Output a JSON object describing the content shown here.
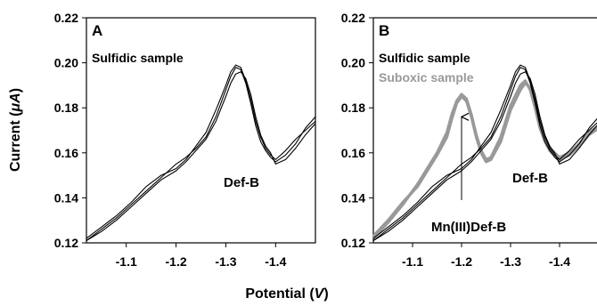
{
  "xlabel": "Potential (V)",
  "ylabel": "Current (μA)",
  "chart_data": [
    {
      "type": "line",
      "panel": "A",
      "xlabel": "Potential (V)",
      "ylabel": "Current (μA)",
      "xlim": [
        -1.02,
        -1.48
      ],
      "ylim": [
        0.12,
        0.22
      ],
      "x_ticks": [
        -1.1,
        -1.2,
        -1.3,
        -1.4
      ],
      "y_ticks": [
        0.12,
        0.14,
        0.16,
        0.18,
        0.2,
        0.22
      ],
      "grid": false,
      "annotations": [
        {
          "text": "Sulfidic sample"
        },
        {
          "text": "Def-B",
          "x": -1.36,
          "y": 0.154
        }
      ],
      "series": [
        {
          "color": "#000000",
          "x": [
            -1.02,
            -1.05,
            -1.08,
            -1.11,
            -1.14,
            -1.17,
            -1.2,
            -1.22,
            -1.24,
            -1.26,
            -1.28,
            -1.3,
            -1.31,
            -1.32,
            -1.33,
            -1.34,
            -1.35,
            -1.36,
            -1.37,
            -1.38,
            -1.39,
            -1.4,
            -1.42,
            -1.44,
            -1.46,
            -1.48
          ],
          "y": [
            0.121,
            0.126,
            0.131,
            0.137,
            0.143,
            0.149,
            0.155,
            0.158,
            0.162,
            0.167,
            0.176,
            0.188,
            0.194,
            0.198,
            0.197,
            0.191,
            0.182,
            0.172,
            0.165,
            0.161,
            0.158,
            0.156,
            0.159,
            0.164,
            0.171,
            0.176
          ]
        },
        {
          "color": "#000000",
          "x": [
            -1.02,
            -1.05,
            -1.08,
            -1.11,
            -1.14,
            -1.17,
            -1.2,
            -1.22,
            -1.24,
            -1.26,
            -1.28,
            -1.3,
            -1.31,
            -1.32,
            -1.33,
            -1.34,
            -1.35,
            -1.36,
            -1.37,
            -1.38,
            -1.39,
            -1.4,
            -1.42,
            -1.44,
            -1.46,
            -1.48
          ],
          "y": [
            0.122,
            0.127,
            0.132,
            0.138,
            0.145,
            0.15,
            0.153,
            0.157,
            0.163,
            0.169,
            0.179,
            0.19,
            0.196,
            0.199,
            0.198,
            0.192,
            0.184,
            0.174,
            0.167,
            0.162,
            0.159,
            0.157,
            0.161,
            0.166,
            0.17,
            0.174
          ]
        },
        {
          "color": "#000000",
          "x": [
            -1.02,
            -1.05,
            -1.08,
            -1.11,
            -1.14,
            -1.17,
            -1.2,
            -1.22,
            -1.24,
            -1.26,
            -1.28,
            -1.3,
            -1.31,
            -1.32,
            -1.33,
            -1.34,
            -1.35,
            -1.36,
            -1.37,
            -1.38,
            -1.39,
            -1.4,
            -1.42,
            -1.44,
            -1.46,
            -1.48
          ],
          "y": [
            0.121,
            0.125,
            0.13,
            0.136,
            0.142,
            0.148,
            0.152,
            0.156,
            0.161,
            0.166,
            0.174,
            0.185,
            0.191,
            0.195,
            0.196,
            0.193,
            0.186,
            0.176,
            0.168,
            0.163,
            0.16,
            0.155,
            0.157,
            0.162,
            0.168,
            0.173
          ]
        }
      ]
    },
    {
      "type": "line",
      "panel": "B",
      "xlabel": "Potential (V)",
      "ylabel": "Current (μA)",
      "xlim": [
        -1.02,
        -1.48
      ],
      "ylim": [
        0.12,
        0.22
      ],
      "x_ticks": [
        -1.1,
        -1.2,
        -1.3,
        -1.4
      ],
      "y_ticks": [
        0.12,
        0.14,
        0.16,
        0.18,
        0.2,
        0.22
      ],
      "grid": false,
      "annotations": [
        {
          "text": "Sulfidic sample"
        },
        {
          "text": "Suboxic sample"
        },
        {
          "text": "Def-B",
          "x": -1.36,
          "y": 0.154
        },
        {
          "text": "Mn(III)Def-B",
          "x": -1.2,
          "y": 0.136
        }
      ],
      "series": [
        {
          "color": "#000000",
          "x": [
            -1.02,
            -1.05,
            -1.08,
            -1.11,
            -1.14,
            -1.17,
            -1.2,
            -1.22,
            -1.24,
            -1.26,
            -1.28,
            -1.3,
            -1.31,
            -1.32,
            -1.33,
            -1.34,
            -1.35,
            -1.36,
            -1.37,
            -1.38,
            -1.39,
            -1.4,
            -1.42,
            -1.44,
            -1.46,
            -1.48
          ],
          "y": [
            0.121,
            0.126,
            0.131,
            0.137,
            0.143,
            0.149,
            0.155,
            0.158,
            0.162,
            0.167,
            0.176,
            0.188,
            0.194,
            0.198,
            0.197,
            0.191,
            0.182,
            0.172,
            0.165,
            0.161,
            0.158,
            0.156,
            0.159,
            0.164,
            0.171,
            0.176
          ]
        },
        {
          "color": "#000000",
          "x": [
            -1.02,
            -1.05,
            -1.08,
            -1.11,
            -1.14,
            -1.17,
            -1.2,
            -1.22,
            -1.24,
            -1.26,
            -1.28,
            -1.3,
            -1.31,
            -1.32,
            -1.33,
            -1.34,
            -1.35,
            -1.36,
            -1.37,
            -1.38,
            -1.39,
            -1.4,
            -1.42,
            -1.44,
            -1.46,
            -1.48
          ],
          "y": [
            0.122,
            0.127,
            0.132,
            0.138,
            0.145,
            0.15,
            0.153,
            0.157,
            0.163,
            0.169,
            0.179,
            0.19,
            0.196,
            0.199,
            0.198,
            0.192,
            0.184,
            0.174,
            0.167,
            0.162,
            0.159,
            0.157,
            0.161,
            0.166,
            0.17,
            0.174
          ]
        },
        {
          "color": "#000000",
          "x": [
            -1.02,
            -1.05,
            -1.08,
            -1.11,
            -1.14,
            -1.17,
            -1.2,
            -1.22,
            -1.24,
            -1.26,
            -1.28,
            -1.3,
            -1.31,
            -1.32,
            -1.33,
            -1.34,
            -1.35,
            -1.36,
            -1.37,
            -1.38,
            -1.39,
            -1.4,
            -1.42,
            -1.44,
            -1.46,
            -1.48
          ],
          "y": [
            0.121,
            0.125,
            0.13,
            0.136,
            0.142,
            0.148,
            0.152,
            0.156,
            0.161,
            0.166,
            0.174,
            0.185,
            0.191,
            0.195,
            0.196,
            0.193,
            0.186,
            0.176,
            0.168,
            0.163,
            0.16,
            0.155,
            0.157,
            0.162,
            0.168,
            0.173
          ]
        },
        {
          "color": "#999999",
          "x": [
            -1.02,
            -1.05,
            -1.08,
            -1.11,
            -1.13,
            -1.15,
            -1.17,
            -1.18,
            -1.19,
            -1.2,
            -1.21,
            -1.22,
            -1.23,
            -1.24,
            -1.25,
            -1.26,
            -1.28,
            -1.3,
            -1.32,
            -1.33,
            -1.34,
            -1.35,
            -1.36,
            -1.37,
            -1.38,
            -1.4,
            -1.42,
            -1.44,
            -1.46,
            -1.48
          ],
          "y": [
            0.122,
            0.129,
            0.137,
            0.146,
            0.153,
            0.16,
            0.169,
            0.177,
            0.183,
            0.186,
            0.184,
            0.177,
            0.168,
            0.161,
            0.157,
            0.158,
            0.167,
            0.181,
            0.19,
            0.192,
            0.188,
            0.18,
            0.171,
            0.165,
            0.161,
            0.157,
            0.159,
            0.163,
            0.168,
            0.171
          ]
        },
        {
          "color": "#999999",
          "x": [
            -1.02,
            -1.05,
            -1.08,
            -1.11,
            -1.13,
            -1.15,
            -1.17,
            -1.18,
            -1.19,
            -1.2,
            -1.21,
            -1.22,
            -1.23,
            -1.24,
            -1.25,
            -1.26,
            -1.28,
            -1.3,
            -1.32,
            -1.33,
            -1.34,
            -1.35,
            -1.36,
            -1.37,
            -1.38,
            -1.4,
            -1.42,
            -1.44,
            -1.46,
            -1.48
          ],
          "y": [
            0.123,
            0.13,
            0.138,
            0.145,
            0.152,
            0.159,
            0.167,
            0.175,
            0.182,
            0.185,
            0.183,
            0.176,
            0.167,
            0.16,
            0.156,
            0.157,
            0.165,
            0.179,
            0.188,
            0.191,
            0.189,
            0.182,
            0.173,
            0.166,
            0.162,
            0.158,
            0.16,
            0.164,
            0.169,
            0.172
          ]
        }
      ],
      "arrow": {
        "x": -1.2,
        "y_from": 0.139,
        "y_to": 0.176
      }
    }
  ]
}
